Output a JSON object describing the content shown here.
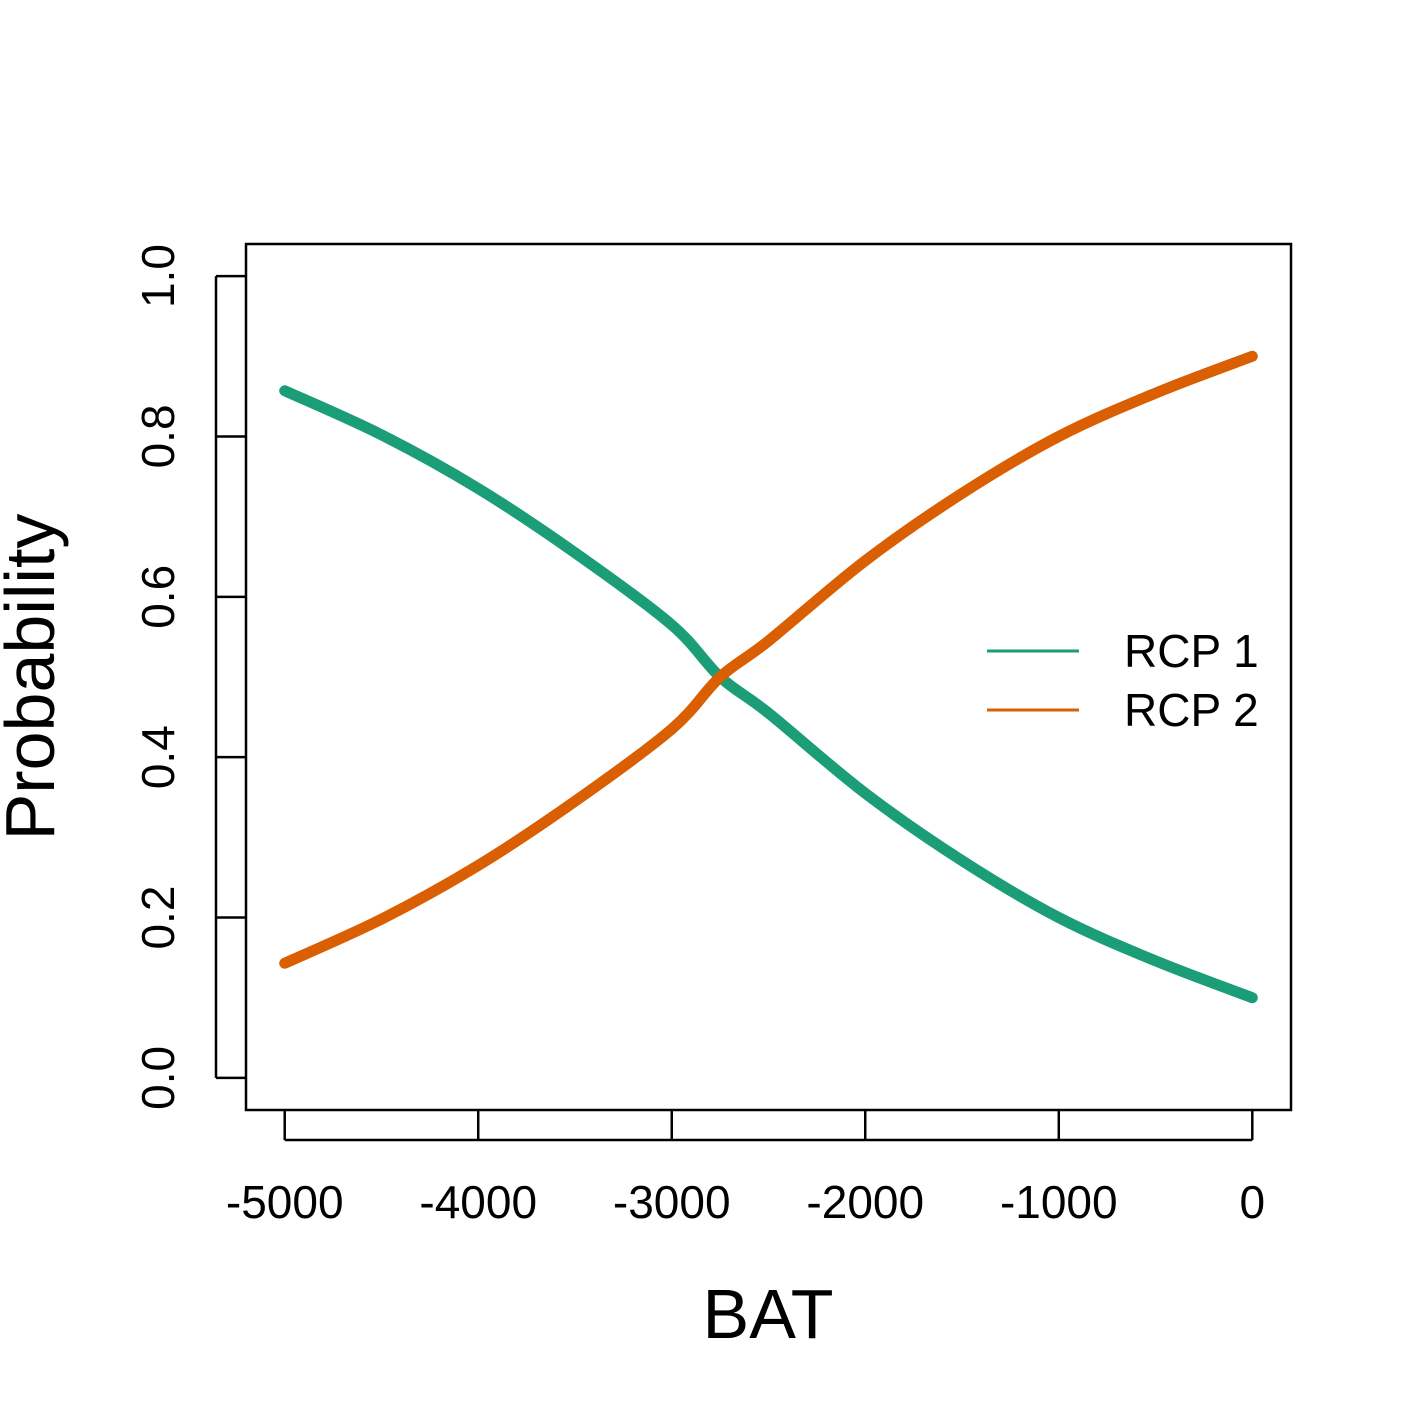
{
  "chart_data": {
    "type": "line",
    "xlabel": "BAT",
    "ylabel": "Probability",
    "xlim": [
      -5000,
      0
    ],
    "ylim": [
      0,
      1
    ],
    "xticks": [
      -5000,
      -4000,
      -3000,
      -2000,
      -1000,
      0
    ],
    "xtick_labels": [
      "-5000",
      "-4000",
      "-3000",
      "-2000",
      "-1000",
      "0"
    ],
    "yticks": [
      0,
      0.2,
      0.4,
      0.6,
      0.8,
      1
    ],
    "ytick_labels": [
      "0.0",
      "0.2",
      "0.4",
      "0.6",
      "0.8",
      "1.0"
    ],
    "grid": false,
    "legend_position": "right",
    "series": [
      {
        "name": "RCP 1",
        "color": "#1b9e77",
        "x": [
          -5000,
          -4500,
          -4000,
          -3500,
          -3000,
          -2750,
          -2500,
          -2000,
          -1500,
          -1000,
          -500,
          0
        ],
        "y": [
          0.857,
          0.802,
          0.735,
          0.655,
          0.565,
          0.5,
          0.455,
          0.355,
          0.271,
          0.2,
          0.146,
          0.1
        ]
      },
      {
        "name": "RCP 2",
        "color": "#d95f02",
        "x": [
          -5000,
          -4500,
          -4000,
          -3500,
          -3000,
          -2750,
          -2500,
          -2000,
          -1500,
          -1000,
          -500,
          0
        ],
        "y": [
          0.143,
          0.198,
          0.265,
          0.345,
          0.435,
          0.5,
          0.545,
          0.645,
          0.729,
          0.8,
          0.854,
          0.9
        ]
      }
    ]
  }
}
